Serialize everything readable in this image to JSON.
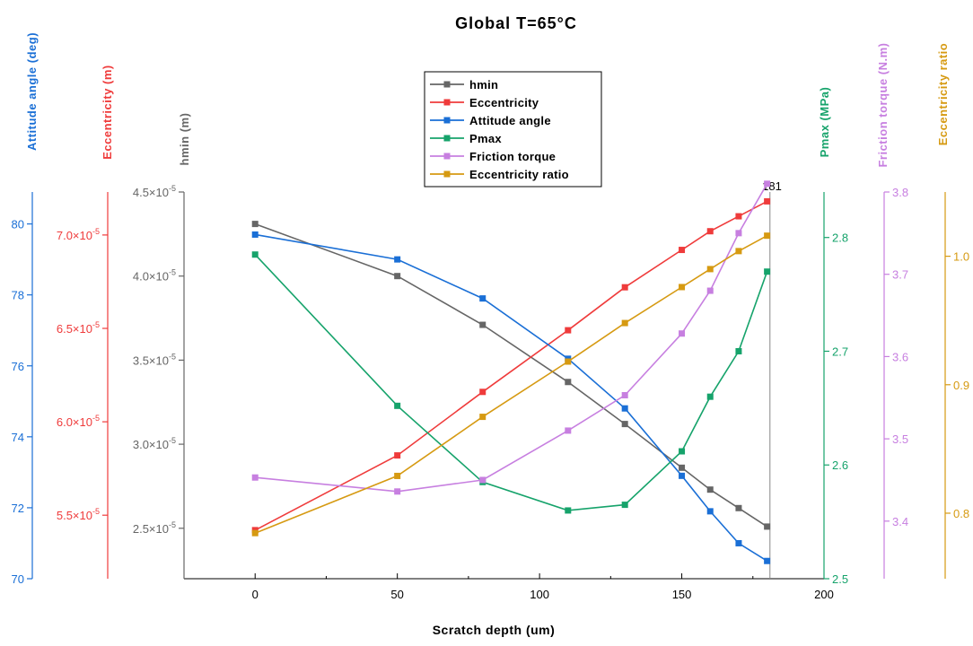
{
  "chart_data": {
    "type": "line",
    "title": "Global  T=65°C",
    "xlabel": "Scratch depth (um)",
    "xlim": [
      -25,
      200
    ],
    "xticks": [
      0,
      50,
      100,
      150,
      200
    ],
    "x": [
      0,
      50,
      80,
      110,
      130,
      150,
      160,
      170,
      180
    ],
    "annotation": "181",
    "annotation_x": 181,
    "legend_position": "top-center",
    "grid": false,
    "axes": [
      {
        "id": "hmin",
        "label": "hmin (m)",
        "color": "#666666",
        "ylim": [
          2.2e-05,
          4.5e-05
        ],
        "ticks": [
          {
            "value": 2.5e-05,
            "mant": "2.5×10",
            "exp": "-5"
          },
          {
            "value": 3e-05,
            "mant": "3.0×10",
            "exp": "-5"
          },
          {
            "value": 3.5e-05,
            "mant": "3.5×10",
            "exp": "-5"
          },
          {
            "value": 4e-05,
            "mant": "4.0×10",
            "exp": "-5"
          },
          {
            "value": 4.5e-05,
            "mant": "4.5×10",
            "exp": "-5"
          }
        ]
      },
      {
        "id": "ecc",
        "label": "Eccentricity (m)",
        "color": "#ef3b3b",
        "ylim": [
          5.16e-05,
          7.23e-05
        ],
        "ticks": [
          {
            "value": 5.5e-05,
            "mant": "5.5×10",
            "exp": "-5"
          },
          {
            "value": 6e-05,
            "mant": "6.0×10",
            "exp": "-5"
          },
          {
            "value": 6.5e-05,
            "mant": "6.5×10",
            "exp": "-5"
          },
          {
            "value": 7e-05,
            "mant": "7.0×10",
            "exp": "-5"
          }
        ]
      },
      {
        "id": "att",
        "label": "Attitude angle (deg)",
        "color": "#1a6fd6",
        "ylim": [
          70,
          80.9
        ],
        "ticks": [
          {
            "value": 70,
            "mant": "70"
          },
          {
            "value": 72,
            "mant": "72"
          },
          {
            "value": 74,
            "mant": "74"
          },
          {
            "value": 76,
            "mant": "76"
          },
          {
            "value": 78,
            "mant": "78"
          },
          {
            "value": 80,
            "mant": "80"
          }
        ]
      },
      {
        "id": "pmax",
        "label": "Pmax (MPa)",
        "color": "#16a36b",
        "ylim": [
          2.5,
          2.84
        ],
        "ticks": [
          {
            "value": 2.5,
            "mant": "2.5"
          },
          {
            "value": 2.6,
            "mant": "2.6"
          },
          {
            "value": 2.7,
            "mant": "2.7"
          },
          {
            "value": 2.8,
            "mant": "2.8"
          }
        ]
      },
      {
        "id": "fric",
        "label": "Friction torque (N.m)",
        "color": "#c77fe0",
        "ylim": [
          3.33,
          3.8
        ],
        "ticks": [
          {
            "value": 3.4,
            "mant": "3.4"
          },
          {
            "value": 3.5,
            "mant": "3.5"
          },
          {
            "value": 3.6,
            "mant": "3.6"
          },
          {
            "value": 3.7,
            "mant": "3.7"
          },
          {
            "value": 3.8,
            "mant": "3.8"
          }
        ]
      },
      {
        "id": "ratio",
        "label": "Eccentricity ratio",
        "color": "#d69a12",
        "ylim": [
          0.749,
          1.05
        ],
        "ticks": [
          {
            "value": 0.8,
            "mant": "0.8"
          },
          {
            "value": 0.9,
            "mant": "0.9"
          },
          {
            "value": 1.0,
            "mant": "1.0"
          }
        ]
      }
    ],
    "series": [
      {
        "name": "hmin",
        "axis": "hmin",
        "color": "#666666",
        "values": [
          4.31e-05,
          4e-05,
          3.71e-05,
          3.37e-05,
          3.12e-05,
          2.86e-05,
          2.73e-05,
          2.62e-05,
          2.51e-05
        ]
      },
      {
        "name": "Eccentricity",
        "axis": "ecc",
        "color": "#ef3b3b",
        "values": [
          5.42e-05,
          5.82e-05,
          6.16e-05,
          6.49e-05,
          6.72e-05,
          6.92e-05,
          7.02e-05,
          7.1e-05,
          7.18e-05
        ]
      },
      {
        "name": "Attitude angle",
        "axis": "att",
        "color": "#1a6fd6",
        "values": [
          79.7,
          79.0,
          77.9,
          76.2,
          74.8,
          72.9,
          71.9,
          71.0,
          70.5
        ]
      },
      {
        "name": "Pmax",
        "axis": "pmax",
        "color": "#16a36b",
        "values": [
          2.785,
          2.652,
          2.585,
          2.56,
          2.565,
          2.612,
          2.66,
          2.7,
          2.77
        ]
      },
      {
        "name": "Friction torque",
        "axis": "fric",
        "color": "#c77fe0",
        "values": [
          3.453,
          3.436,
          3.45,
          3.51,
          3.553,
          3.628,
          3.68,
          3.75,
          3.81
        ]
      },
      {
        "name": "Eccentricity ratio",
        "axis": "ratio",
        "color": "#d69a12",
        "values": [
          0.7845,
          0.829,
          0.875,
          0.918,
          0.948,
          0.976,
          0.99,
          1.004,
          1.016
        ]
      }
    ]
  }
}
